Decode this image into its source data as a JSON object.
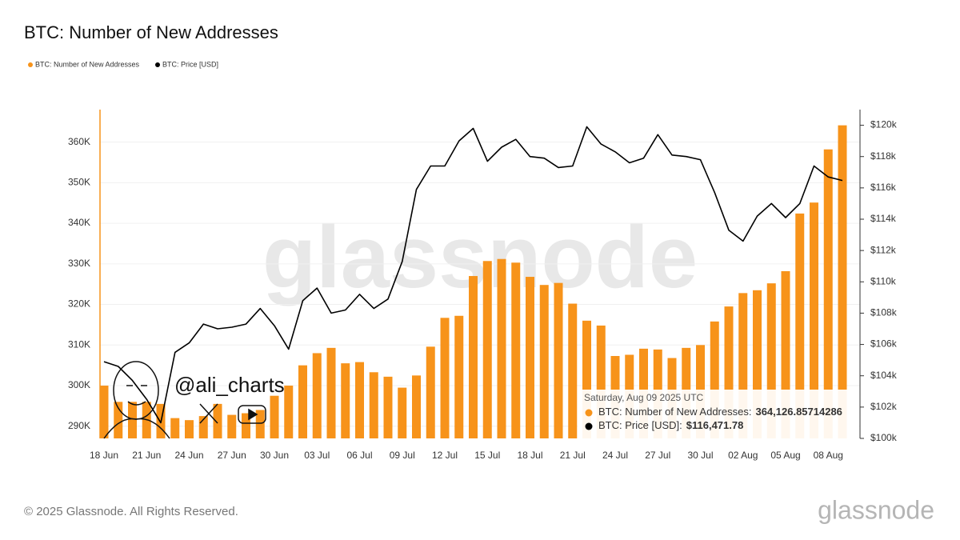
{
  "chart_data": {
    "type": "bar-line",
    "title": "BTC: Number of New Addresses",
    "legend": "top-left",
    "categories": [
      "18 Jun",
      null,
      null,
      "21 Jun",
      null,
      null,
      "24 Jun",
      null,
      null,
      "27 Jun",
      null,
      null,
      "30 Jun",
      null,
      null,
      "03 Jul",
      null,
      null,
      "06 Jul",
      null,
      null,
      "09 Jul",
      null,
      null,
      "12 Jul",
      null,
      null,
      "15 Jul",
      null,
      null,
      "18 Jul",
      null,
      null,
      "21 Jul",
      null,
      null,
      "24 Jul",
      null,
      null,
      "27 Jul",
      null,
      null,
      "30 Jul",
      null,
      null,
      "02 Aug",
      null,
      null,
      "05 Aug",
      null,
      null,
      "08 Aug",
      null
    ],
    "series": [
      {
        "name": "BTC: Number of New Addresses",
        "color": "#f7931a",
        "type": "bar",
        "values": [
          300000,
          296000,
          296000,
          296000,
          295500,
          292000,
          291500,
          292500,
          295500,
          292800,
          293200,
          294000,
          297500,
          300000,
          305000,
          308000,
          309300,
          305500,
          305800,
          303300,
          302200,
          299500,
          302500,
          309600,
          316700,
          317200,
          327000,
          330700,
          331200,
          330300,
          326800,
          324800,
          325300,
          320200,
          316000,
          314800,
          307300,
          307600,
          309100,
          308900,
          306800,
          309300,
          310000,
          315800,
          319500,
          322800,
          323500,
          325200,
          328200,
          342400,
          345100,
          358200,
          364126.85714286
        ]
      },
      {
        "name": "BTC: Price [USD]",
        "color": "#000000",
        "type": "line",
        "axis": "y2",
        "values": [
          104900,
          104600,
          103700,
          102500,
          101000,
          105500,
          106100,
          107300,
          107000,
          107100,
          107300,
          108300,
          107200,
          105700,
          108800,
          109600,
          108000,
          108200,
          109200,
          108300,
          108900,
          111300,
          115900,
          117400,
          117400,
          119000,
          119800,
          117700,
          118600,
          119100,
          118000,
          117900,
          117300,
          117400,
          119900,
          118800,
          118300,
          117600,
          117900,
          119400,
          118100,
          118000,
          117800,
          115700,
          113300,
          112600,
          114200,
          115000,
          114100,
          115000,
          117400,
          116700,
          116471.78
        ]
      }
    ],
    "ylim": [
      287000,
      368000
    ],
    "yticks": [
      {
        "value": 290000,
        "label": "290K"
      },
      {
        "value": 300000,
        "label": "300K"
      },
      {
        "value": 310000,
        "label": "310K"
      },
      {
        "value": 320000,
        "label": "320K"
      },
      {
        "value": 330000,
        "label": "330K"
      },
      {
        "value": 340000,
        "label": "340K"
      },
      {
        "value": 350000,
        "label": "350K"
      },
      {
        "value": 360000,
        "label": "360K"
      }
    ],
    "y2lim": [
      100000,
      121000
    ],
    "y2ticks": [
      {
        "value": 100000,
        "label": "$100k"
      },
      {
        "value": 102000,
        "label": "$102k"
      },
      {
        "value": 104000,
        "label": "$104k"
      },
      {
        "value": 106000,
        "label": "$106k"
      },
      {
        "value": 108000,
        "label": "$108k"
      },
      {
        "value": 110000,
        "label": "$110k"
      },
      {
        "value": 112000,
        "label": "$112k"
      },
      {
        "value": 114000,
        "label": "$114k"
      },
      {
        "value": 116000,
        "label": "$116k"
      },
      {
        "value": 118000,
        "label": "$118k"
      },
      {
        "value": 120000,
        "label": "$120k"
      }
    ],
    "grid": true,
    "tooltip": {
      "title": "Saturday, Aug 09 2025 UTC",
      "rows": [
        {
          "label": "BTC: Number of New Addresses:",
          "value": "364,126.85714286"
        },
        {
          "label": "BTC: Price [USD]:",
          "value": "$116,471.78"
        }
      ]
    },
    "watermark": "glassnode",
    "handle": "@ali_charts",
    "footer": "© 2025 Glassnode. All Rights Reserved.",
    "logo": "glassnode"
  }
}
